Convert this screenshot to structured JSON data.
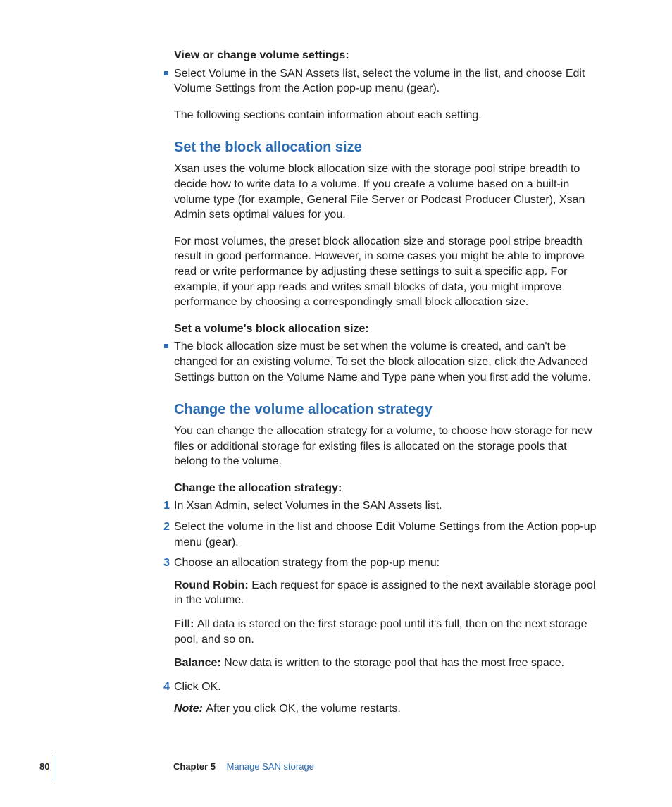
{
  "colors": {
    "accent": "#2a6db5",
    "text": "#222222",
    "background": "#ffffff"
  },
  "typography": {
    "body_size_pt": 12,
    "heading_size_pt": 15,
    "footer_size_pt": 10,
    "font_family": "Helvetica Neue"
  },
  "section1": {
    "intro_bold": "View or change volume settings:",
    "bullet_text": "Select Volume in the SAN Assets list, select the volume in the list, and choose Edit Volume Settings from the Action pop-up menu (gear).",
    "follow_para": "The following sections contain information about each setting."
  },
  "section2": {
    "heading": "Set the block allocation size",
    "p1": "Xsan uses the volume block allocation size with the storage pool stripe breadth to decide how to write data to a volume. If you create a volume based on a built-in volume type (for example, General File Server or Podcast Producer Cluster), Xsan Admin sets optimal values for you.",
    "p2": "For most volumes, the preset block allocation size and storage pool stripe breadth result in good performance. However, in some cases you might be able to improve read or write performance by adjusting these settings to suit a specific app. For example, if your app reads and writes small blocks of data, you might improve performance by choosing a correspondingly small block allocation size.",
    "intro_bold": "Set a volume's block allocation size:",
    "bullet_text": "The block allocation size must be set when the volume is created, and can't be changed for an existing volume. To set the block allocation size, click the Advanced Settings button on the Volume Name and Type pane when you first add the volume."
  },
  "section3": {
    "heading": "Change the volume allocation strategy",
    "p1": "You can change the allocation strategy for a volume, to choose how storage for new files or additional storage for existing files is allocated on the storage pools that belong to the volume.",
    "intro_bold": "Change the allocation strategy:",
    "steps": {
      "n1": "1",
      "t1": "In Xsan Admin, select Volumes in the SAN Assets list.",
      "n2": "2",
      "t2": "Select the volume in the list and choose Edit Volume Settings from the Action pop-up menu (gear).",
      "n3": "3",
      "t3": "Choose an allocation strategy from the pop-up menu:",
      "n4": "4",
      "t4": "Click OK."
    },
    "defs": {
      "rr_label": "Round Robin:  ",
      "rr_text": "Each request for space is assigned to the next available storage pool in the volume.",
      "fill_label": "Fill:  ",
      "fill_text": "All data is stored on the first storage pool until it's full, then on the next storage pool, and so on.",
      "bal_label": "Balance:  ",
      "bal_text": "New data is written to the storage pool that has the most free space."
    },
    "note_label": "Note:  ",
    "note_text": "After you click OK, the volume restarts."
  },
  "footer": {
    "page_no": "80",
    "chapter_label": "Chapter 5",
    "chapter_title": "Manage SAN storage"
  }
}
